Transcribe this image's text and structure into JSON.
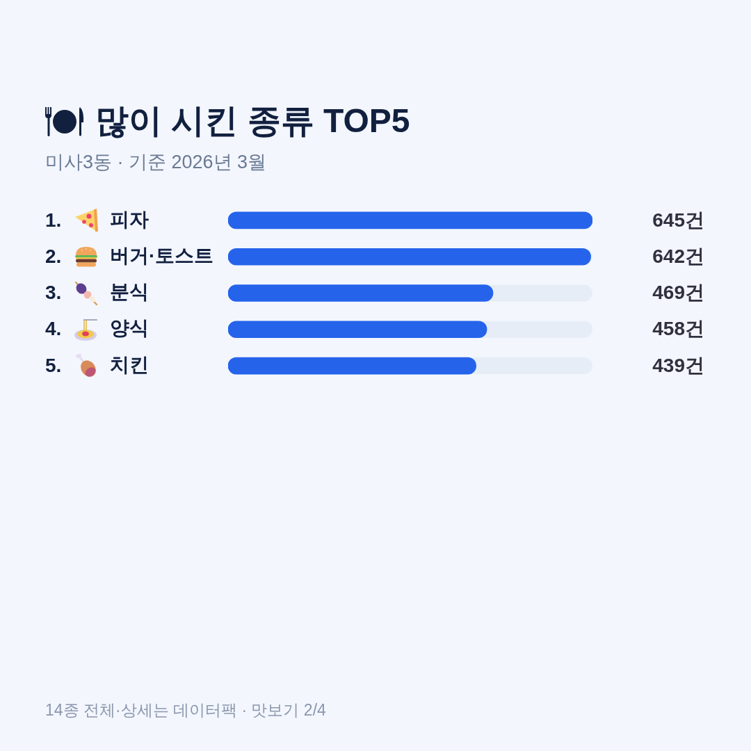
{
  "chart_data": {
    "type": "bar",
    "orientation": "horizontal",
    "title": "많이 시킨 종류 TOP5",
    "subtitle": "미사3동 · 기준 2026년 3월",
    "categories": [
      "피자",
      "버거·토스트",
      "분식",
      "양식",
      "치킨"
    ],
    "values": [
      645,
      642,
      469,
      458,
      439
    ],
    "color": "#2563eb",
    "value_labels": [
      "645건",
      "642건",
      "469건",
      "458건",
      "439건"
    ],
    "xlim": [
      0,
      645
    ],
    "grid": false,
    "legend": false,
    "tick_labels": "y",
    "annotations": [
      "1.",
      "2.",
      "3.",
      "4.",
      "5.",
      "14종 전체·상세는 데이터팩 · 맛보기 2/4"
    ]
  }
}
